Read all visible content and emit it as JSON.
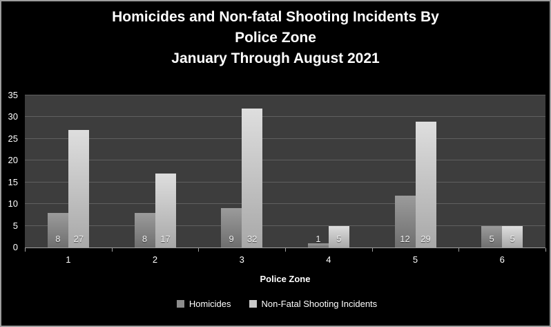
{
  "chart_data": {
    "type": "bar",
    "title_lines": [
      "Homicides and Non-fatal Shooting Incidents By",
      "Police Zone",
      "January  Through August 2021"
    ],
    "xlabel": "Police Zone",
    "categories": [
      "1",
      "2",
      "3",
      "4",
      "5",
      "6"
    ],
    "series": [
      {
        "name": "Homicides",
        "values": [
          8,
          8,
          9,
          1,
          12,
          5
        ],
        "color": "#8c8c8c",
        "color_top": "#9b9b9b",
        "color_bottom": "#6f6f6f"
      },
      {
        "name": "Non-Fatal Shooting Incidents",
        "values": [
          27,
          17,
          32,
          5,
          29,
          5
        ],
        "color": "#c9c9c9",
        "color_top": "#dedede",
        "color_bottom": "#a8a8a8"
      }
    ],
    "ylim": [
      0,
      35
    ],
    "yticks": [
      0,
      5,
      10,
      15,
      20,
      25,
      30,
      35
    ],
    "grid": "horizontal",
    "legend_position": "bottom",
    "colors": {
      "background": "#000000",
      "plot_background": "#3d3d3d",
      "gridline": "#606060",
      "text": "#ffffff"
    }
  }
}
